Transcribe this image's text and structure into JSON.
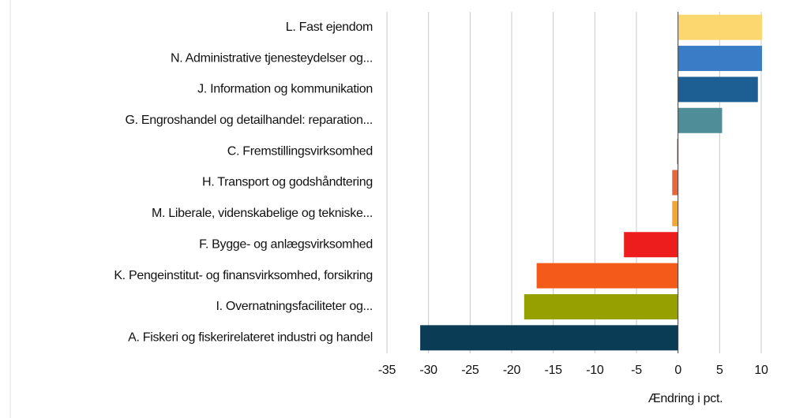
{
  "chart_data": {
    "type": "barh",
    "categories": [
      "L. Fast ejendom",
      "N. Administrative tjenesteydelser og...",
      "J. Information og kommunikation",
      "G. Engroshandel og detailhandel: reparation...",
      "C. Fremstillingsvirksomhed",
      "H. Transport og godshåndtering",
      "M. Liberale, videnskabelige og tekniske...",
      "F. Bygge- og anlægsvirksomhed",
      "K. Pengeinstitut- og finansvirksomhed, forsikring",
      "I. Overnatningsfaciliteter og...",
      "A. Fiskeri og fiskerirelateret industri og handel"
    ],
    "values": [
      10.1,
      10.1,
      9.6,
      5.3,
      -0.1,
      -0.7,
      -0.7,
      -6.5,
      -17,
      -18.5,
      -31
    ],
    "colors": [
      "#fcd770",
      "#3b7cc6",
      "#1d5f93",
      "#4f8e99",
      "#8a3a2a",
      "#e8673a",
      "#f4a630",
      "#ee1d1d",
      "#f45b1a",
      "#96a100",
      "#0b3c56"
    ],
    "xlabel": "Ændring i pct.",
    "xlim": [
      -35,
      10
    ],
    "xticks": [
      -35,
      -30,
      -25,
      -20,
      -15,
      -10,
      -5,
      0,
      5,
      10
    ],
    "grid": true
  }
}
